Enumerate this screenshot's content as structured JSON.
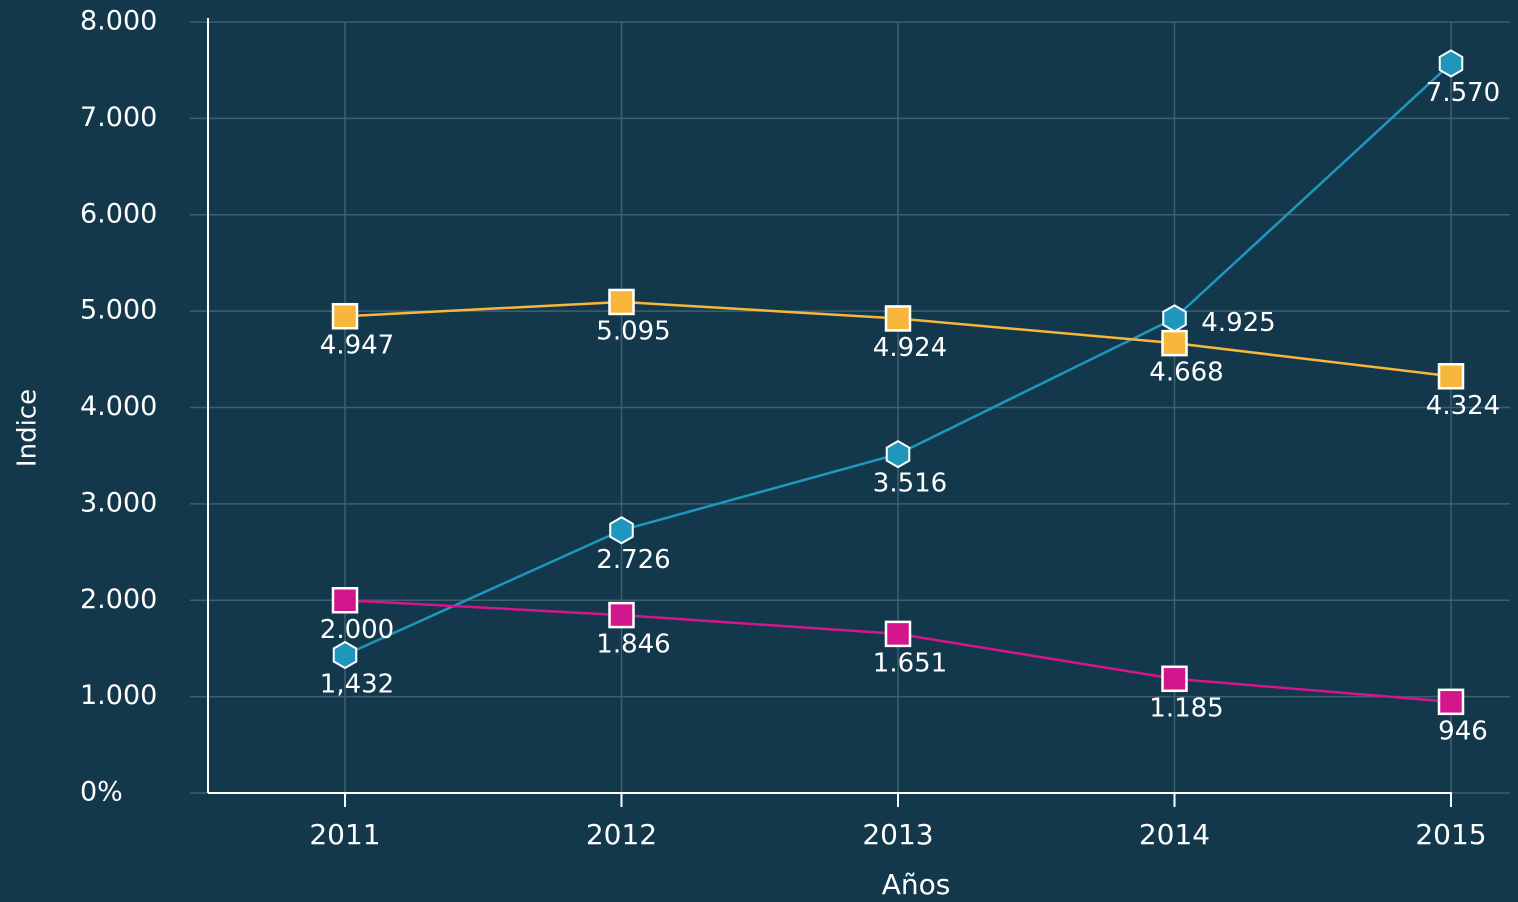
{
  "chart_data": {
    "type": "line",
    "x_label": "Años",
    "y_label": "Indice",
    "categories": [
      "2011",
      "2012",
      "2013",
      "2014",
      "2015"
    ],
    "series": [
      {
        "color": "#1f97bd",
        "marker": "hexagon",
        "values": [
          1432,
          2726,
          3516,
          4925,
          7570
        ],
        "value_labels": [
          "1,432",
          "2.726",
          "3.516",
          "4.925",
          "7.570"
        ]
      },
      {
        "color": "#f6b73c",
        "marker": "square",
        "values": [
          4947,
          5095,
          4924,
          4668,
          4324
        ],
        "value_labels": [
          "4.947",
          "5.095",
          "4.924",
          "4.668",
          "4.324"
        ]
      },
      {
        "color": "#d4168c",
        "marker": "square",
        "values": [
          2000,
          1846,
          1651,
          1185,
          946
        ],
        "value_labels": [
          "2.000",
          "1.846",
          "1.651",
          "1.185",
          "946"
        ]
      }
    ],
    "ylim": [
      0,
      8000
    ],
    "yticks": [
      {
        "value": 0,
        "label": "0%"
      },
      {
        "value": 1000,
        "label": "1.000"
      },
      {
        "value": 2000,
        "label": "2.000"
      },
      {
        "value": 3000,
        "label": "3.000"
      },
      {
        "value": 4000,
        "label": "4.000"
      },
      {
        "value": 5000,
        "label": "5.000"
      },
      {
        "value": 6000,
        "label": "6.000"
      },
      {
        "value": 7000,
        "label": "7.000"
      },
      {
        "value": 8000,
        "label": "8.000"
      }
    ],
    "grid": true
  }
}
